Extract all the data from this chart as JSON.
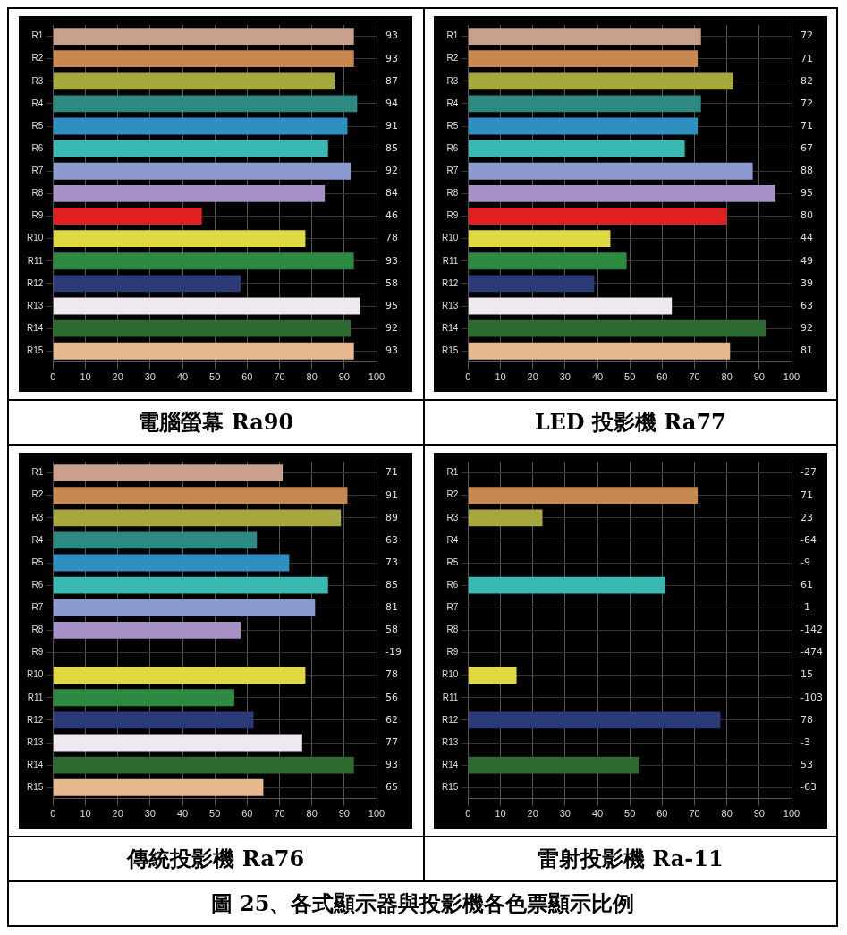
{
  "chart_data": [
    {
      "type": "bar",
      "orientation": "horizontal",
      "title": "電腦螢幕 Ra90",
      "categories": [
        "R1",
        "R2",
        "R3",
        "R4",
        "R5",
        "R6",
        "R7",
        "R8",
        "R9",
        "R10",
        "R11",
        "R12",
        "R13",
        "R14",
        "R15"
      ],
      "colors": [
        "#c9a08c",
        "#c88850",
        "#a8a840",
        "#2e8a80",
        "#2e90c0",
        "#38b8b0",
        "#8c9ad0",
        "#a890c8",
        "#e02020",
        "#e0d840",
        "#2e8a40",
        "#2c3a78",
        "#f0e8f0",
        "#2e6a30",
        "#e8b890"
      ],
      "values": [
        93,
        93,
        87,
        94,
        91,
        85,
        92,
        84,
        46,
        78,
        93,
        58,
        95,
        92,
        93
      ],
      "value_labels": [
        "93",
        "93",
        "87",
        "94",
        "91",
        "85",
        "92",
        "84",
        "46",
        "78",
        "93",
        "58",
        "95",
        "92",
        "93"
      ],
      "xlim": [
        0,
        100
      ],
      "xticks": [
        0,
        10,
        20,
        30,
        40,
        50,
        60,
        70,
        80,
        90,
        100
      ],
      "grid": true
    },
    {
      "type": "bar",
      "orientation": "horizontal",
      "title": "LED 投影機 Ra77",
      "categories": [
        "R1",
        "R2",
        "R3",
        "R4",
        "R5",
        "R6",
        "R7",
        "R8",
        "R9",
        "R10",
        "R11",
        "R12",
        "R13",
        "R14",
        "R15"
      ],
      "colors": [
        "#c9a08c",
        "#c88850",
        "#a8a840",
        "#2e8a80",
        "#2e90c0",
        "#38b8b0",
        "#8c9ad0",
        "#a890c8",
        "#e02020",
        "#e0d840",
        "#2e8a40",
        "#2c3a78",
        "#f0e8f0",
        "#2e6a30",
        "#e8b890"
      ],
      "values": [
        72,
        71,
        82,
        72,
        71,
        67,
        88,
        95,
        80,
        44,
        49,
        39,
        63,
        92,
        81
      ],
      "value_labels": [
        "72",
        "71",
        "82",
        "72",
        "71",
        "67",
        "88",
        "95",
        "80",
        "44",
        "49",
        "39",
        "63",
        "92",
        "81"
      ],
      "xlim": [
        0,
        100
      ],
      "xticks": [
        0,
        10,
        20,
        30,
        40,
        50,
        60,
        70,
        80,
        90,
        100
      ],
      "grid": true
    },
    {
      "type": "bar",
      "orientation": "horizontal",
      "title": "傳統投影機 Ra76",
      "categories": [
        "R1",
        "R2",
        "R3",
        "R4",
        "R5",
        "R6",
        "R7",
        "R8",
        "R9",
        "R10",
        "R11",
        "R12",
        "R13",
        "R14",
        "R15"
      ],
      "colors": [
        "#c9a08c",
        "#c88850",
        "#a8a840",
        "#2e8a80",
        "#2e90c0",
        "#38b8b0",
        "#8c9ad0",
        "#a890c8",
        "#e02020",
        "#e0d840",
        "#2e8a40",
        "#2c3a78",
        "#f0e8f0",
        "#2e6a30",
        "#e8b890"
      ],
      "values": [
        71,
        91,
        89,
        63,
        73,
        85,
        81,
        58,
        null,
        78,
        56,
        62,
        77,
        93,
        65
      ],
      "value_labels": [
        "71",
        "91",
        "89",
        "63",
        "73",
        "85",
        "81",
        "58",
        "-19",
        "78",
        "56",
        "62",
        "77",
        "93",
        "65"
      ],
      "xlim": [
        0,
        100
      ],
      "xticks": [
        0,
        10,
        20,
        30,
        40,
        50,
        60,
        70,
        80,
        90,
        100
      ],
      "grid": true
    },
    {
      "type": "bar",
      "orientation": "horizontal",
      "title": "雷射投影機 Ra-11",
      "categories": [
        "R1",
        "R2",
        "R3",
        "R4",
        "R5",
        "R6",
        "R7",
        "R8",
        "R9",
        "R10",
        "R11",
        "R12",
        "R13",
        "R14",
        "R15"
      ],
      "colors": [
        "#c9a08c",
        "#c88850",
        "#a8a840",
        "#2e8a80",
        "#2e90c0",
        "#38b8b0",
        "#8c9ad0",
        "#a890c8",
        "#e02020",
        "#e0d840",
        "#2e8a40",
        "#2c3a78",
        "#f0e8f0",
        "#2e6a30",
        "#e8b890"
      ],
      "values": [
        null,
        71,
        23,
        null,
        null,
        61,
        null,
        null,
        null,
        15,
        null,
        78,
        null,
        53,
        null
      ],
      "value_labels": [
        "-27",
        "71",
        "23",
        "-64",
        "-9",
        "61",
        "-1",
        "-142",
        "-474",
        "15",
        "-103",
        "78",
        "-3",
        "53",
        "-63"
      ],
      "xlim": [
        0,
        100
      ],
      "xticks": [
        0,
        10,
        20,
        30,
        40,
        50,
        60,
        70,
        80,
        90,
        100
      ],
      "grid": true
    },
    {
      "type": "other",
      "title": "圖 25、各式顯示器與投影機各色票顯示比例"
    }
  ]
}
